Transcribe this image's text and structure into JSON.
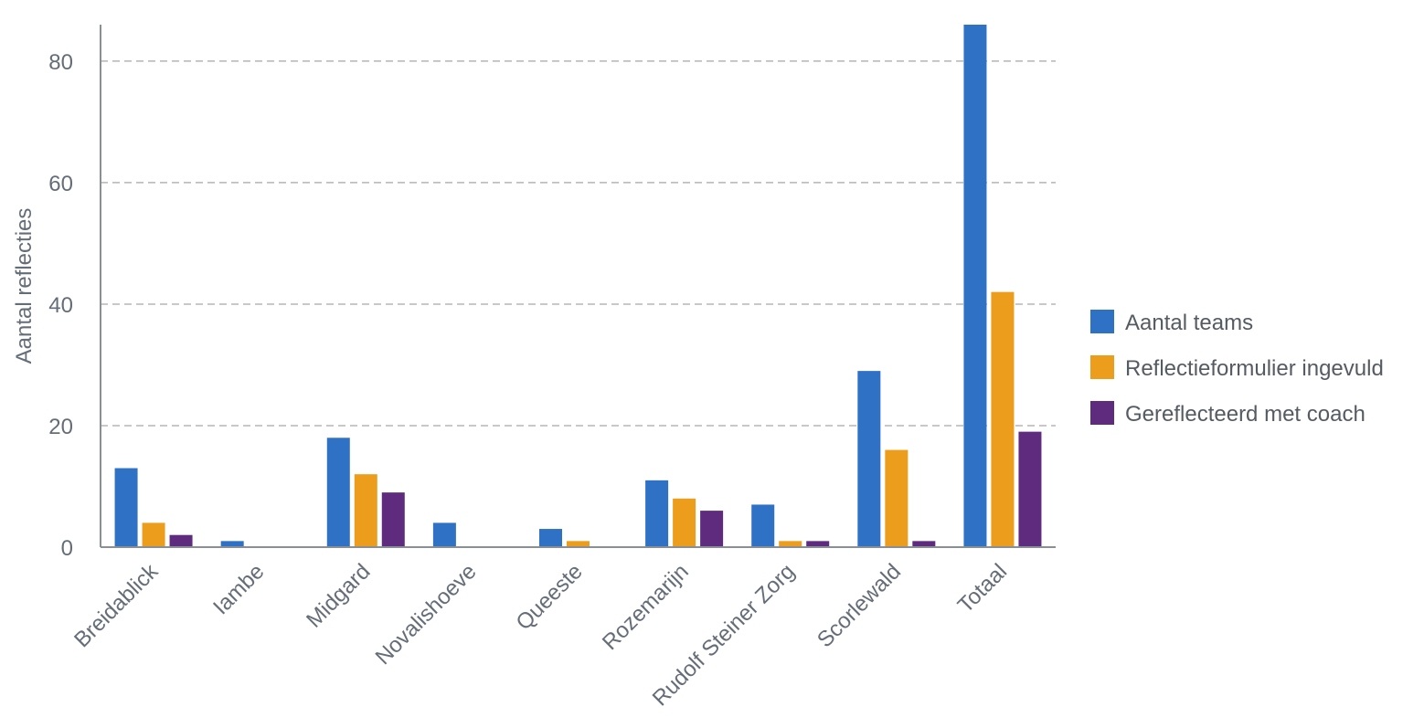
{
  "chart_data": {
    "type": "bar",
    "title": "",
    "xlabel": "",
    "ylabel": "Aantal reflecties",
    "ylim": [
      0,
      86
    ],
    "yticks": [
      0,
      20,
      40,
      60,
      80
    ],
    "grid": true,
    "legend_position": "right",
    "categories": [
      "Breidablick",
      "Iambe",
      "Midgard",
      "Novalishoeve",
      "Queeste",
      "Rozemarijn",
      "Rudolf Steiner Zorg",
      "Scorlewald",
      "Totaal"
    ],
    "series": [
      {
        "name": "Aantal teams",
        "color": "#2f71c4",
        "values": [
          13,
          1,
          18,
          4,
          3,
          11,
          7,
          29,
          86
        ]
      },
      {
        "name": "Reflectieformulier ingevuld",
        "color": "#ec9d1c",
        "values": [
          4,
          0,
          12,
          0,
          1,
          8,
          1,
          16,
          42
        ]
      },
      {
        "name": "Gereflecteerd met coach",
        "color": "#5f2b7e",
        "values": [
          2,
          0,
          9,
          0,
          0,
          6,
          1,
          1,
          19
        ]
      }
    ]
  }
}
